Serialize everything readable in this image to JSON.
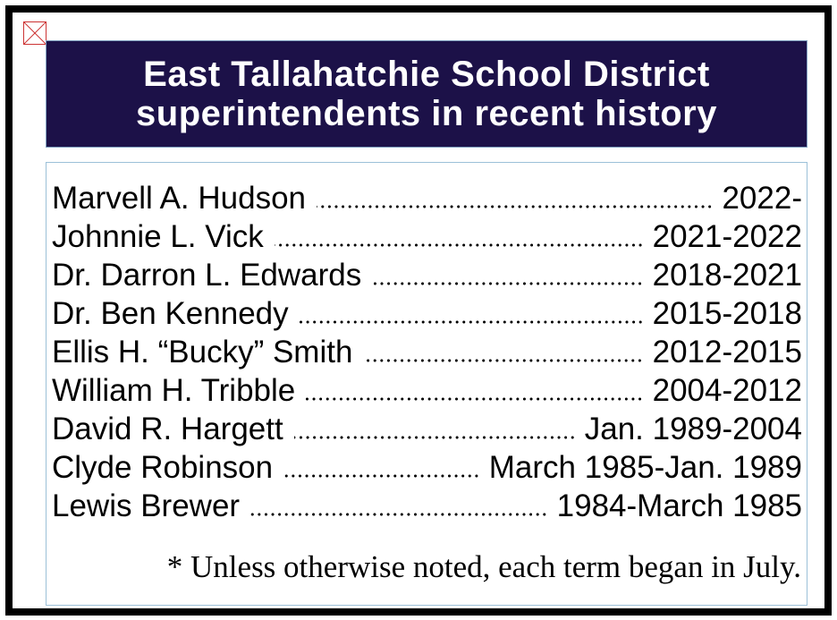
{
  "header": {
    "title_lines": [
      "East Tallahatchie School District",
      "superintendents in recent history"
    ]
  },
  "entries": [
    {
      "name": "Marvell A. Hudson",
      "term": "2022-"
    },
    {
      "name": "Johnnie L. Vick",
      "term": "2021-2022"
    },
    {
      "name": "Dr. Darron L. Edwards",
      "term": "2018-2021"
    },
    {
      "name": "Dr. Ben Kennedy",
      "term": "2015-2018"
    },
    {
      "name": "Ellis H. “Bucky” Smith",
      "term": "2012-2015"
    },
    {
      "name": "William H. Tribble",
      "term": "2004-2012"
    },
    {
      "name": "David R. Hargett",
      "term": "Jan. 1989-2004"
    },
    {
      "name": "Clyde Robinson",
      "term": "March 1985-Jan. 1989"
    },
    {
      "name": "Lewis Brewer",
      "term": "1984-March 1985"
    }
  ],
  "footnote": "* Unless otherwise noted, each term began in July."
}
